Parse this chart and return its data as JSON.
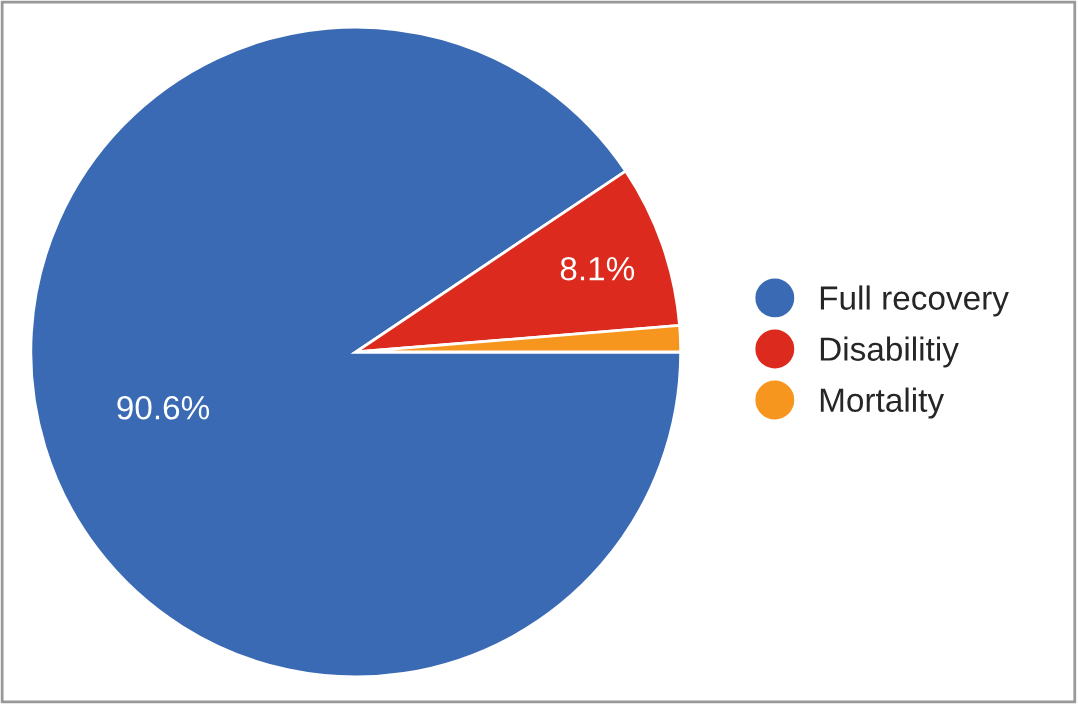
{
  "chart_data": {
    "type": "pie",
    "categories": [
      "Full recovery",
      "Disabilitiy",
      "Mortality"
    ],
    "values": [
      90.6,
      8.1,
      1.3
    ],
    "colors": [
      "#3a6ab4",
      "#dc2a1e",
      "#f7961e"
    ],
    "value_labels": [
      "90.6%",
      "8.1%",
      null
    ],
    "legend": "right"
  }
}
